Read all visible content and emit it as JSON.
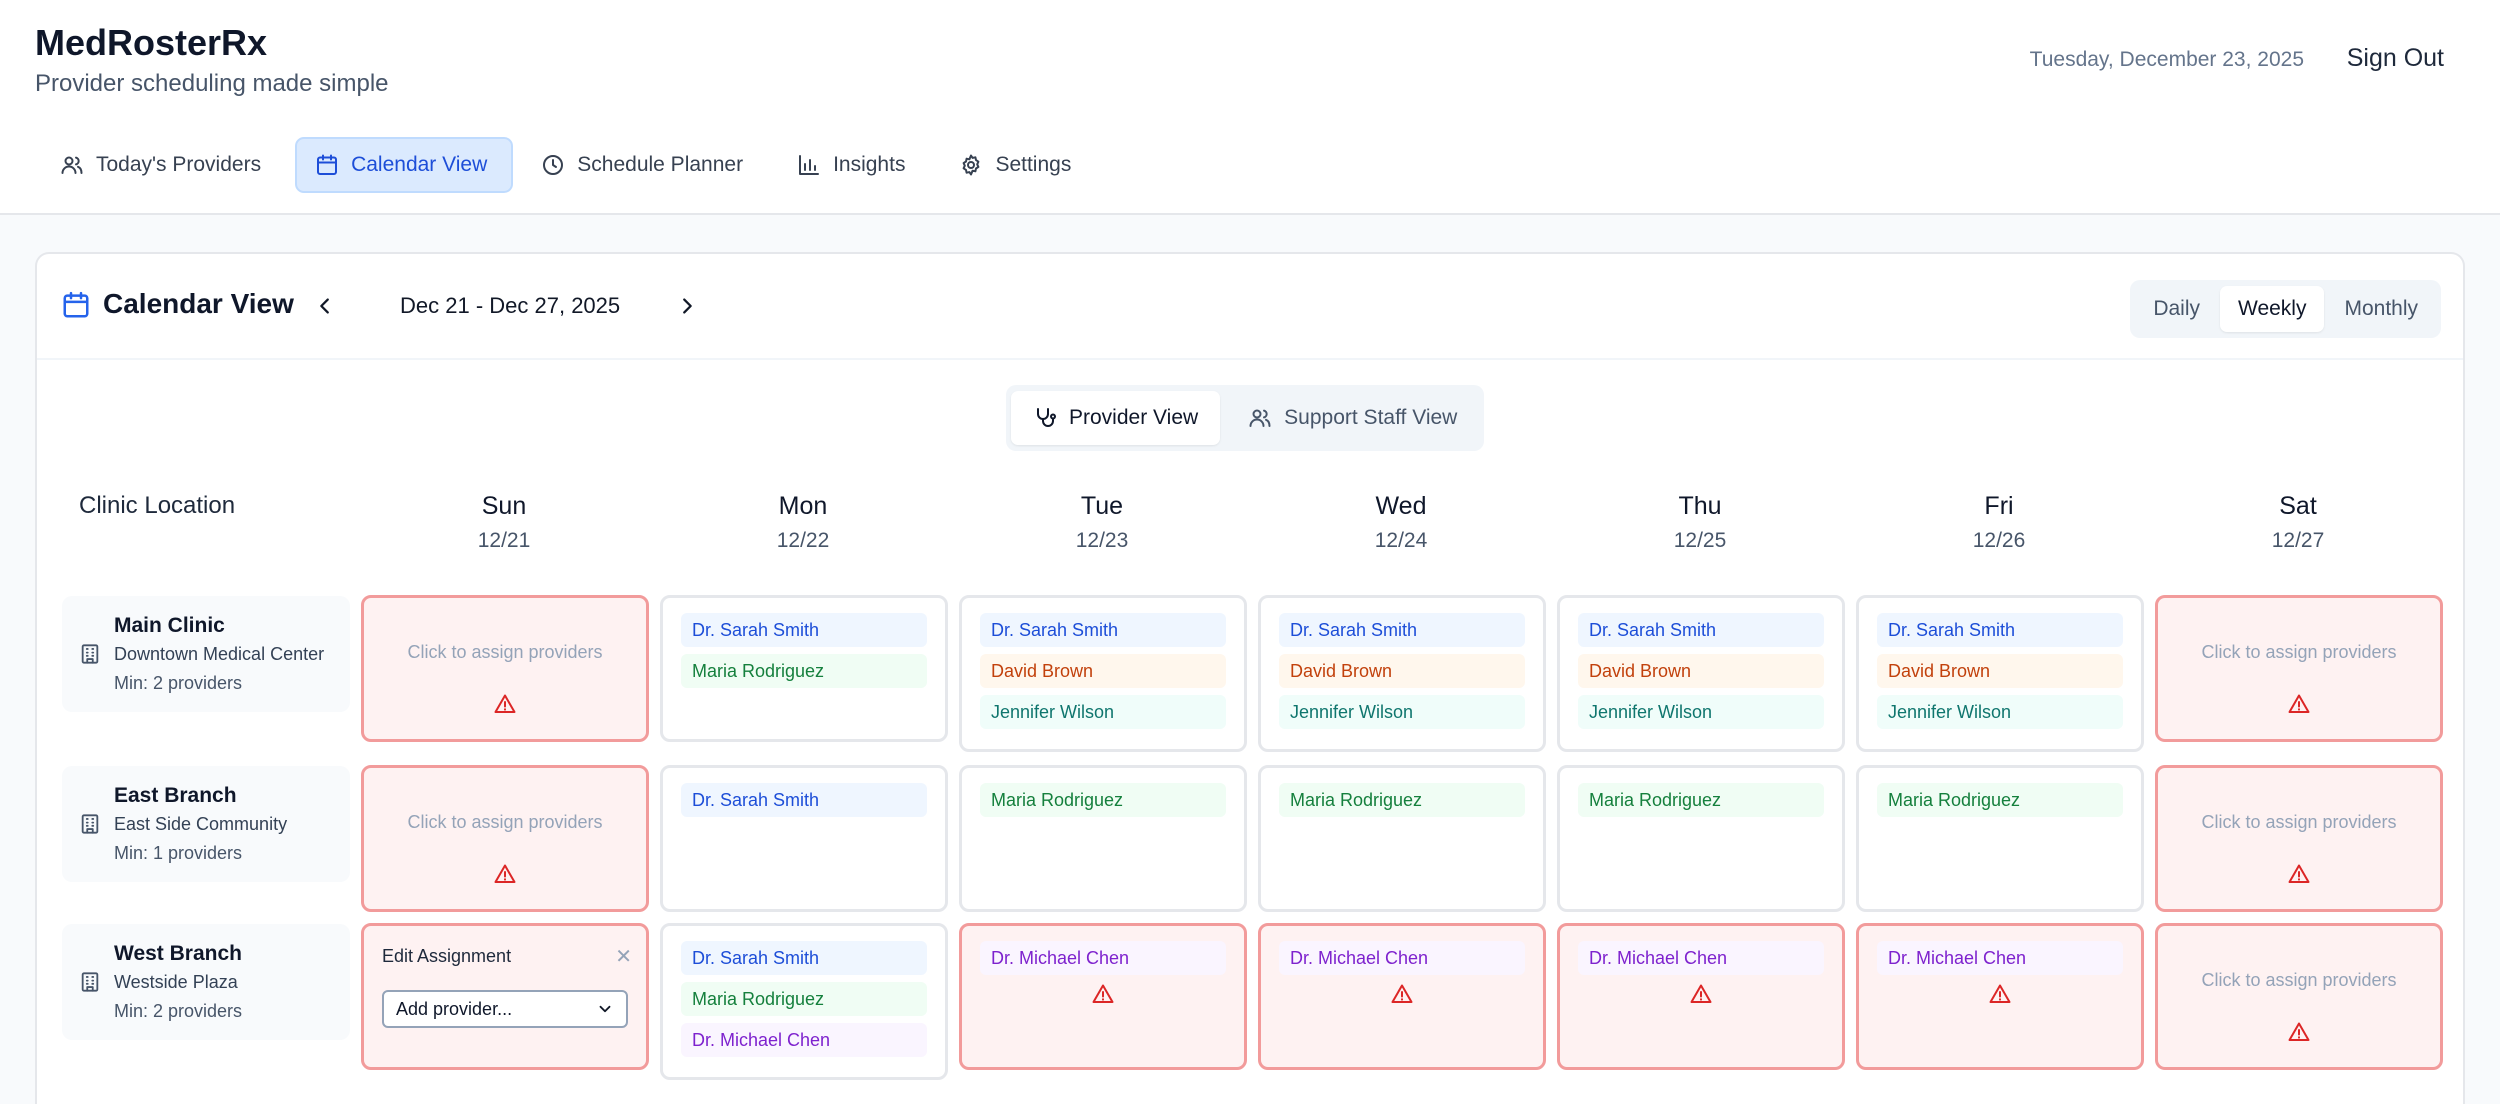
{
  "app": {
    "title": "MedRosterRx",
    "subtitle": "Provider scheduling made simple",
    "date": "Tuesday, December 23, 2025",
    "sign_out": "Sign Out"
  },
  "nav": [
    {
      "label": "Today's Providers",
      "icon": "users-icon"
    },
    {
      "label": "Calendar View",
      "icon": "calendar-icon",
      "active": true
    },
    {
      "label": "Schedule Planner",
      "icon": "clock-icon"
    },
    {
      "label": "Insights",
      "icon": "bar-chart-icon"
    },
    {
      "label": "Settings",
      "icon": "gear-icon"
    }
  ],
  "calendar": {
    "title": "Calendar View",
    "range": "Dec 21 - Dec 27, 2025",
    "range_modes": [
      "Daily",
      "Weekly",
      "Monthly"
    ],
    "active_mode": "Weekly",
    "views": [
      "Provider View",
      "Support Staff View"
    ],
    "active_view": "Provider View",
    "location_header": "Clinic Location",
    "assign_hint": "Click to assign providers",
    "edit_title": "Edit Assignment",
    "edit_placeholder": "Add provider..."
  },
  "days": [
    {
      "name": "Sun",
      "date": "12/21"
    },
    {
      "name": "Mon",
      "date": "12/22"
    },
    {
      "name": "Tue",
      "date": "12/23"
    },
    {
      "name": "Wed",
      "date": "12/24"
    },
    {
      "name": "Thu",
      "date": "12/25"
    },
    {
      "name": "Fri",
      "date": "12/26"
    },
    {
      "name": "Sat",
      "date": "12/27"
    }
  ],
  "locations": [
    {
      "name": "Main Clinic",
      "sub": "Downtown Medical Center",
      "min": "Min: 2 providers"
    },
    {
      "name": "East Branch",
      "sub": "East Side Community",
      "min": "Min: 1 providers"
    },
    {
      "name": "West Branch",
      "sub": "Westside Plaza",
      "min": "Min: 2 providers"
    }
  ],
  "assignments": {
    "main": {
      "mon": [
        "Dr. Sarah Smith",
        "Maria Rodriguez"
      ],
      "tue": [
        "Dr. Sarah Smith",
        "David Brown",
        "Jennifer Wilson"
      ],
      "wed": [
        "Dr. Sarah Smith",
        "David Brown",
        "Jennifer Wilson"
      ],
      "thu": [
        "Dr. Sarah Smith",
        "David Brown",
        "Jennifer Wilson"
      ],
      "fri": [
        "Dr. Sarah Smith",
        "David Brown",
        "Jennifer Wilson"
      ]
    },
    "east": {
      "mon": [
        "Dr. Sarah Smith"
      ],
      "tue": [
        "Maria Rodriguez"
      ],
      "wed": [
        "Maria Rodriguez"
      ],
      "thu": [
        "Maria Rodriguez"
      ],
      "fri": [
        "Maria Rodriguez"
      ]
    },
    "west": {
      "mon": [
        "Dr. Sarah Smith",
        "Maria Rodriguez",
        "Dr. Michael Chen"
      ],
      "tue": [
        "Dr. Michael Chen"
      ],
      "wed": [
        "Dr. Michael Chen"
      ],
      "thu": [
        "Dr. Michael Chen"
      ],
      "fri": [
        "Dr. Michael Chen"
      ]
    }
  },
  "colors": {
    "accent": "#2563eb",
    "warning": "#dc2626",
    "provider_smith": "#1d4ed8",
    "provider_rodriguez": "#15803d",
    "provider_brown": "#c2410c",
    "provider_wilson": "#0f766e",
    "provider_chen": "#7e22ce"
  }
}
